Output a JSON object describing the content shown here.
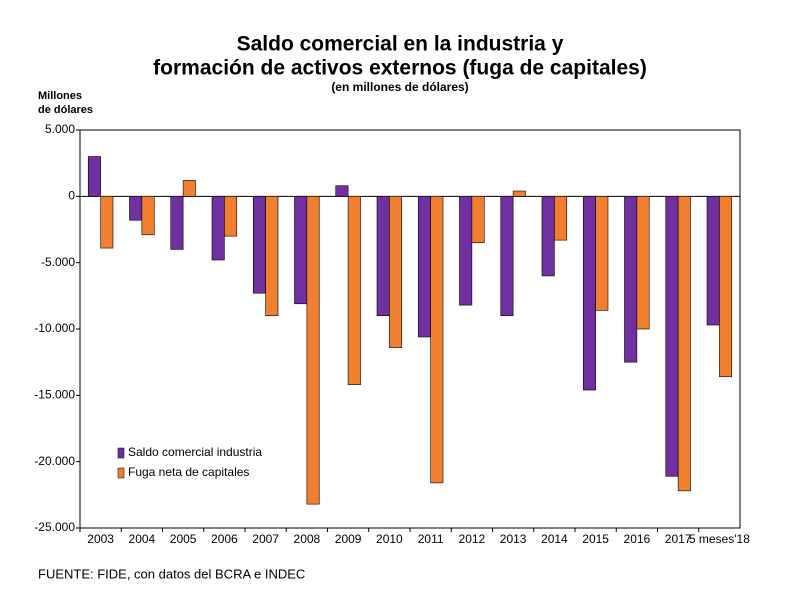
{
  "chart_data": {
    "type": "bar",
    "title": [
      "Saldo comercial en la industria y",
      "formación de activos externos (fuga de capitales)"
    ],
    "subtitle": "(en millones de dólares)",
    "y_label": [
      "Millones",
      "de dólares"
    ],
    "source": "FUENTE: FIDE, con datos del BCRA e INDEC",
    "categories": [
      "2003",
      "2004",
      "2005",
      "2006",
      "2007",
      "2008",
      "2009",
      "2010",
      "2011",
      "2012",
      "2013",
      "2014",
      "2015",
      "2016",
      "2017",
      "5 meses'18"
    ],
    "series": [
      {
        "name": "Saldo comercial industria",
        "color": "#7030a0",
        "values": [
          3000,
          -1800,
          -4000,
          -4800,
          -7300,
          -8100,
          800,
          -9000,
          -10600,
          -8200,
          -9000,
          -6000,
          -14600,
          -12500,
          -21100,
          -9700
        ]
      },
      {
        "name": "Fuga neta de capitales",
        "color": "#f08030",
        "values": [
          -3900,
          -2900,
          1200,
          -3000,
          -9000,
          -23200,
          -14200,
          -11400,
          -21600,
          -3500,
          400,
          -3300,
          -8600,
          -10000,
          -22200,
          -13600
        ]
      }
    ],
    "ylim": [
      -25000,
      5000
    ],
    "yticks": [
      {
        "value": -25000,
        "label": "-25.000"
      },
      {
        "value": -20000,
        "label": "-20.000"
      },
      {
        "value": -15000,
        "label": "-15.000"
      },
      {
        "value": -10000,
        "label": "-10.000"
      },
      {
        "value": -5000,
        "label": "-5.000"
      },
      0,
      {
        "value": 5000,
        "label": "5.000"
      }
    ],
    "grid": false,
    "legend": "lower-left"
  }
}
